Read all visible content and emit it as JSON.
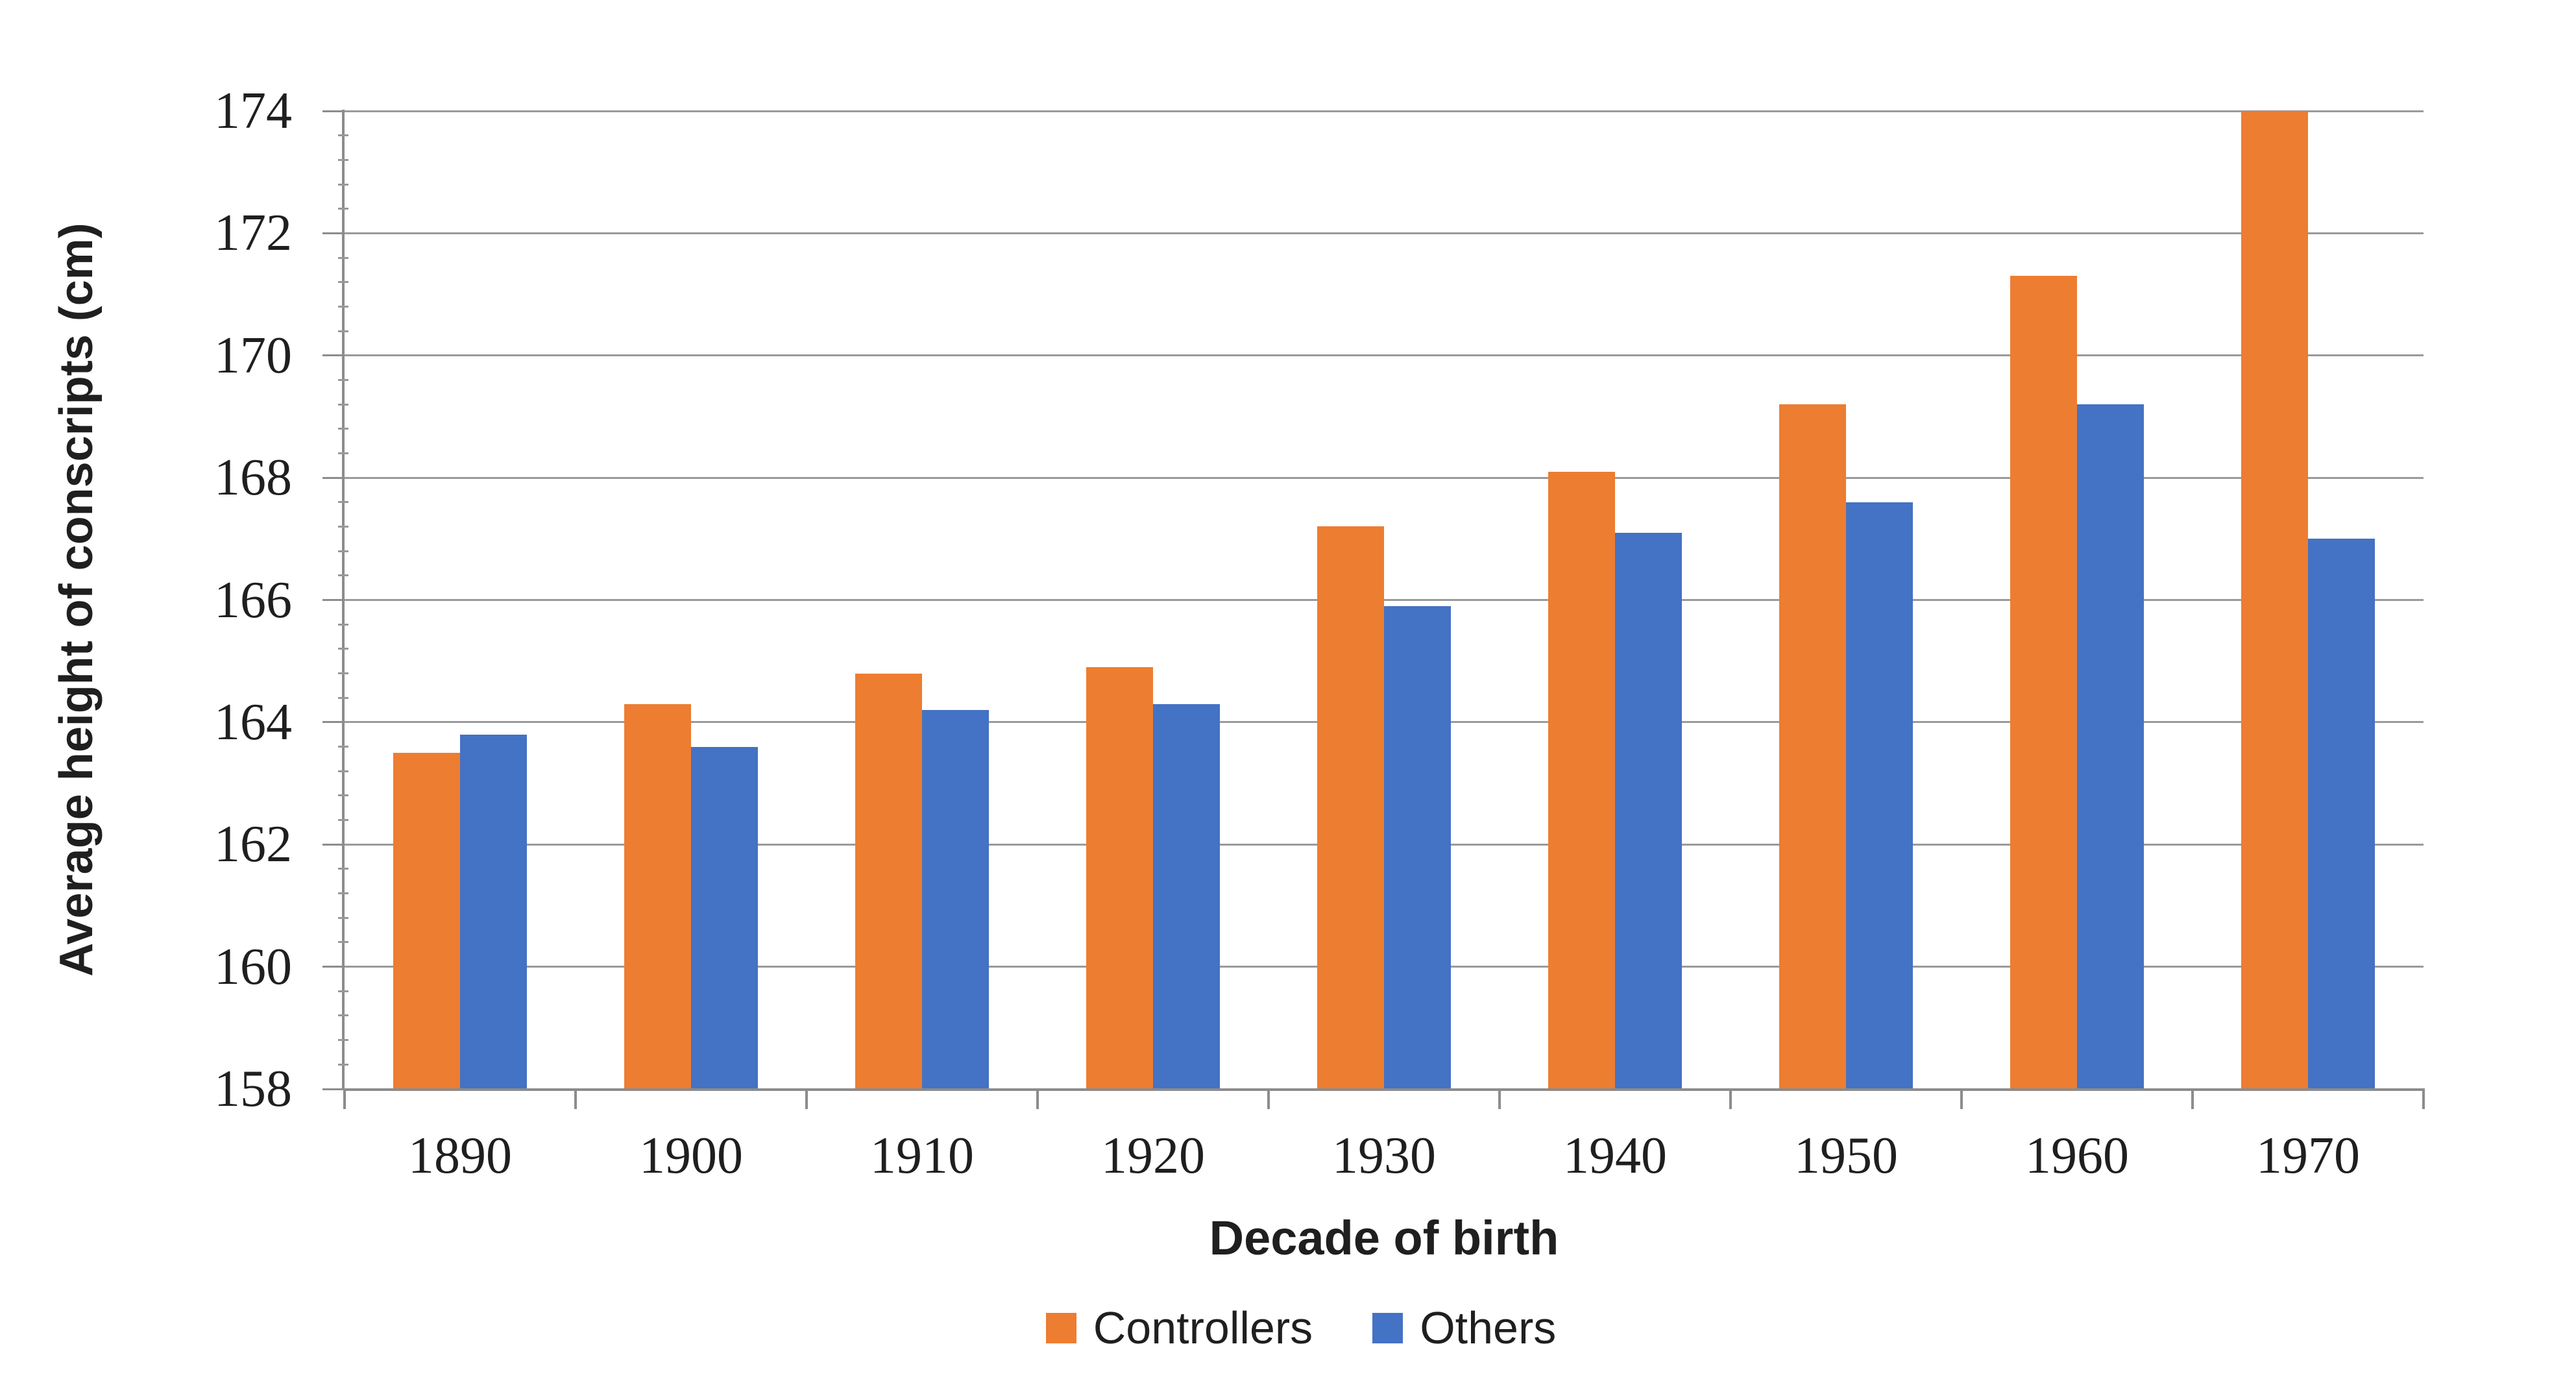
{
  "chart_data": {
    "type": "bar",
    "categories": [
      "1890",
      "1900",
      "1910",
      "1920",
      "1930",
      "1940",
      "1950",
      "1960",
      "1970"
    ],
    "series": [
      {
        "name": "Controllers",
        "color": "#ED7D31",
        "values": [
          163.5,
          164.3,
          164.8,
          164.9,
          167.2,
          168.1,
          169.2,
          171.3,
          174.0
        ]
      },
      {
        "name": "Others",
        "color": "#4472C4",
        "values": [
          163.8,
          163.6,
          164.2,
          164.3,
          165.9,
          167.1,
          167.6,
          169.2,
          167.0
        ]
      }
    ],
    "xlabel": "Decade of birth",
    "ylabel": "Average height of conscripts (cm)",
    "ylim": [
      158,
      174
    ],
    "y_major_unit": 2,
    "y_minor_unit": 0.4,
    "y_tick_labels": [
      "158",
      "160",
      "162",
      "164",
      "166",
      "168",
      "170",
      "172",
      "174"
    ],
    "grid": true,
    "legend_position": "bottom",
    "colors": {
      "gridline": "#9A9A9A",
      "axis": "#8C8C8C",
      "text": "#1F1F1F",
      "background": "#FFFFFF"
    }
  }
}
